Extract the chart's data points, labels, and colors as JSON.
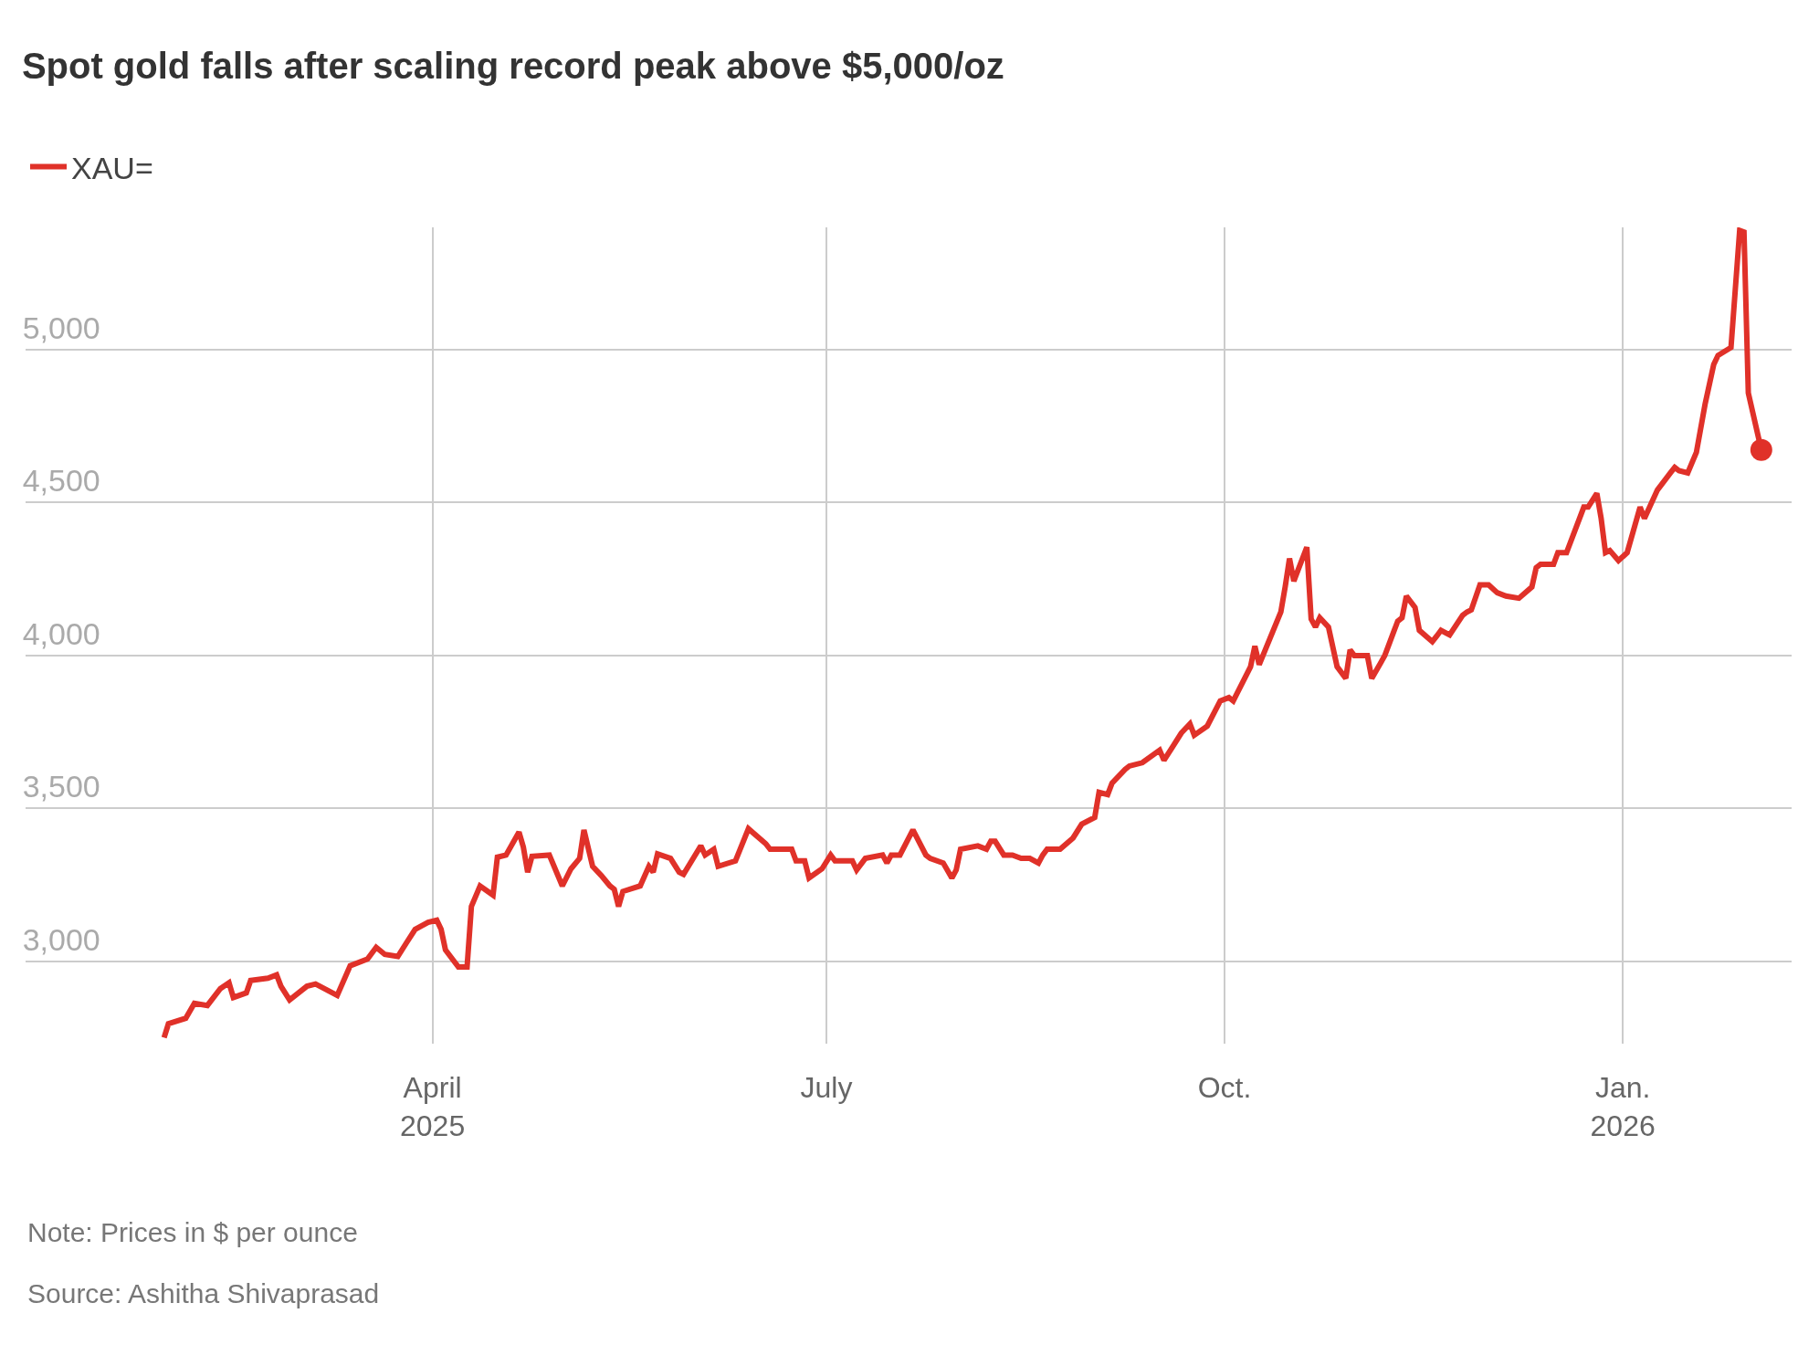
{
  "chart_data": {
    "type": "line",
    "title": "Spot gold falls after scaling record peak above $5,000/oz",
    "annotations": [
      "Note: Prices in $ per ounce",
      "Source: Ashitha Shivaprasad"
    ],
    "x": [
      "2025-01-29",
      "2025-01-30",
      "2025-02-03",
      "2025-02-05",
      "2025-02-08",
      "2025-02-11",
      "2025-02-13",
      "2025-02-14",
      "2025-02-17",
      "2025-02-18",
      "2025-02-22",
      "2025-02-24",
      "2025-02-25",
      "2025-02-27",
      "2025-03-03",
      "2025-03-05",
      "2025-03-10",
      "2025-03-13",
      "2025-03-17",
      "2025-03-19",
      "2025-03-21",
      "2025-03-24",
      "2025-03-26",
      "2025-03-28",
      "2025-03-31",
      "2025-04-02",
      "2025-04-03",
      "2025-04-04",
      "2025-04-07",
      "2025-04-09",
      "2025-04-10",
      "2025-04-12",
      "2025-04-15",
      "2025-04-16",
      "2025-04-18",
      "2025-04-21",
      "2025-04-22",
      "2025-04-23",
      "2025-04-24",
      "2025-04-28",
      "2025-05-01",
      "2025-05-03",
      "2025-05-05",
      "2025-05-06",
      "2025-05-08",
      "2025-05-10",
      "2025-05-12",
      "2025-05-13",
      "2025-05-14",
      "2025-05-15",
      "2025-05-19",
      "2025-05-21",
      "2025-05-22",
      "2025-05-23",
      "2025-05-26",
      "2025-05-28",
      "2025-05-29",
      "2025-06-02",
      "2025-06-03",
      "2025-06-05",
      "2025-06-06",
      "2025-06-10",
      "2025-06-13",
      "2025-06-17",
      "2025-06-18",
      "2025-06-23",
      "2025-06-24",
      "2025-06-26",
      "2025-06-27",
      "2025-06-30",
      "2025-07-02",
      "2025-07-03",
      "2025-07-07",
      "2025-07-08",
      "2025-07-10",
      "2025-07-14",
      "2025-07-15",
      "2025-07-16",
      "2025-07-18",
      "2025-07-21",
      "2025-07-24",
      "2025-07-25",
      "2025-07-28",
      "2025-07-30",
      "2025-07-31",
      "2025-08-01",
      "2025-08-05",
      "2025-08-07",
      "2025-08-08",
      "2025-08-09",
      "2025-08-11",
      "2025-08-13",
      "2025-08-15",
      "2025-08-17",
      "2025-08-19",
      "2025-08-20",
      "2025-08-21",
      "2025-08-24",
      "2025-08-27",
      "2025-08-29",
      "2025-09-01",
      "2025-09-02",
      "2025-09-04",
      "2025-09-05",
      "2025-09-08",
      "2025-09-09",
      "2025-09-12",
      "2025-09-16",
      "2025-09-17",
      "2025-09-19",
      "2025-09-21",
      "2025-09-23",
      "2025-09-24",
      "2025-09-27",
      "2025-09-30",
      "2025-10-02",
      "2025-10-03",
      "2025-10-07",
      "2025-10-08",
      "2025-10-09",
      "2025-10-14",
      "2025-10-15",
      "2025-10-16",
      "2025-10-17",
      "2025-10-20",
      "2025-10-21",
      "2025-10-22",
      "2025-10-23",
      "2025-10-25",
      "2025-10-27",
      "2025-10-29",
      "2025-10-30",
      "2025-10-31",
      "2025-11-03",
      "2025-11-04",
      "2025-11-06",
      "2025-11-07",
      "2025-11-10",
      "2025-11-11",
      "2025-11-12",
      "2025-11-14",
      "2025-11-15",
      "2025-11-18",
      "2025-11-19",
      "2025-11-20",
      "2025-11-22",
      "2025-11-25",
      "2025-11-26",
      "2025-11-27",
      "2025-11-29",
      "2025-12-01",
      "2025-12-03",
      "2025-12-05",
      "2025-12-08",
      "2025-12-11",
      "2025-12-12",
      "2025-12-13",
      "2025-12-16",
      "2025-12-17",
      "2025-12-19",
      "2025-12-23",
      "2025-12-24",
      "2025-12-26",
      "2025-12-27",
      "2025-12-28",
      "2025-12-29",
      "2025-12-31",
      "2026-01-02",
      "2026-01-05",
      "2026-01-06",
      "2026-01-09",
      "2026-01-12",
      "2026-01-13",
      "2026-01-14",
      "2026-01-16",
      "2026-01-18",
      "2026-01-20",
      "2026-01-22",
      "2026-01-23",
      "2026-01-26",
      "2026-01-28",
      "2026-01-29",
      "2026-01-30",
      "2026-02-02"
    ],
    "series": [
      {
        "name": "XAU=",
        "color": "#e03129",
        "values": [
          2750,
          2795,
          2813,
          2862,
          2855,
          2910,
          2929,
          2881,
          2896,
          2937,
          2944,
          2955,
          2918,
          2873,
          2918,
          2925,
          2888,
          2985,
          3007,
          3045,
          3022,
          3015,
          3060,
          3104,
          3127,
          3134,
          3104,
          3037,
          2981,
          2981,
          3179,
          3246,
          3216,
          3340,
          3347,
          3422,
          3373,
          3291,
          3343,
          3347,
          3246,
          3302,
          3336,
          3429,
          3310,
          3280,
          3246,
          3235,
          3179,
          3228,
          3246,
          3310,
          3291,
          3351,
          3336,
          3291,
          3284,
          3377,
          3347,
          3366,
          3310,
          3328,
          3433,
          3384,
          3366,
          3366,
          3328,
          3328,
          3272,
          3302,
          3347,
          3328,
          3328,
          3298,
          3336,
          3347,
          3321,
          3347,
          3347,
          3429,
          3347,
          3336,
          3321,
          3272,
          3298,
          3366,
          3377,
          3366,
          3392,
          3392,
          3347,
          3347,
          3336,
          3336,
          3321,
          3347,
          3366,
          3366,
          3403,
          3448,
          3470,
          3552,
          3545,
          3582,
          3627,
          3638,
          3649,
          3690,
          3657,
          3701,
          3746,
          3776,
          3739,
          3769,
          3851,
          3862,
          3851,
          3963,
          4030,
          3970,
          4142,
          4224,
          4317,
          4243,
          4354,
          4119,
          4093,
          4123,
          4093,
          3963,
          3925,
          4018,
          3999,
          3999,
          3925,
          3974,
          3999,
          4112,
          4123,
          4194,
          4157,
          4082,
          4045,
          4063,
          4082,
          4067,
          4131,
          4142,
          4149,
          4231,
          4231,
          4205,
          4194,
          4187,
          4224,
          4287,
          4298,
          4298,
          4336,
          4336,
          4485,
          4485,
          4530,
          4448,
          4336,
          4343,
          4310,
          4336,
          4485,
          4448,
          4541,
          4597,
          4615,
          4604,
          4597,
          4664,
          4821,
          4951,
          4981,
          5007,
          5390,
          5385,
          4858,
          4672
        ]
      },
      {
        "type": "scatter",
        "color": "#e03129",
        "x": [
          "2026-02-02"
        ],
        "values": [
          4672
        ]
      }
    ],
    "xlim": [
      "2024-12-28",
      "2026-02-09"
    ],
    "xticks": [
      {
        "value": "2025-04-01",
        "label": "April\n2025"
      },
      {
        "value": "2025-07-01",
        "label": "July"
      },
      {
        "value": "2025-10-01",
        "label": "Oct."
      },
      {
        "value": "2026-01-01",
        "label": "Jan.\n2026"
      }
    ],
    "ylim": [
      2730,
      5400
    ],
    "yticks": [
      {
        "value": 3000,
        "label": "3,000"
      },
      {
        "value": 3500,
        "label": "3,500"
      },
      {
        "value": 4000,
        "label": "4,000"
      },
      {
        "value": 4500,
        "label": "4,500"
      },
      {
        "value": 5000,
        "label": "5,000"
      }
    ],
    "grid": true,
    "legend": "top left"
  }
}
